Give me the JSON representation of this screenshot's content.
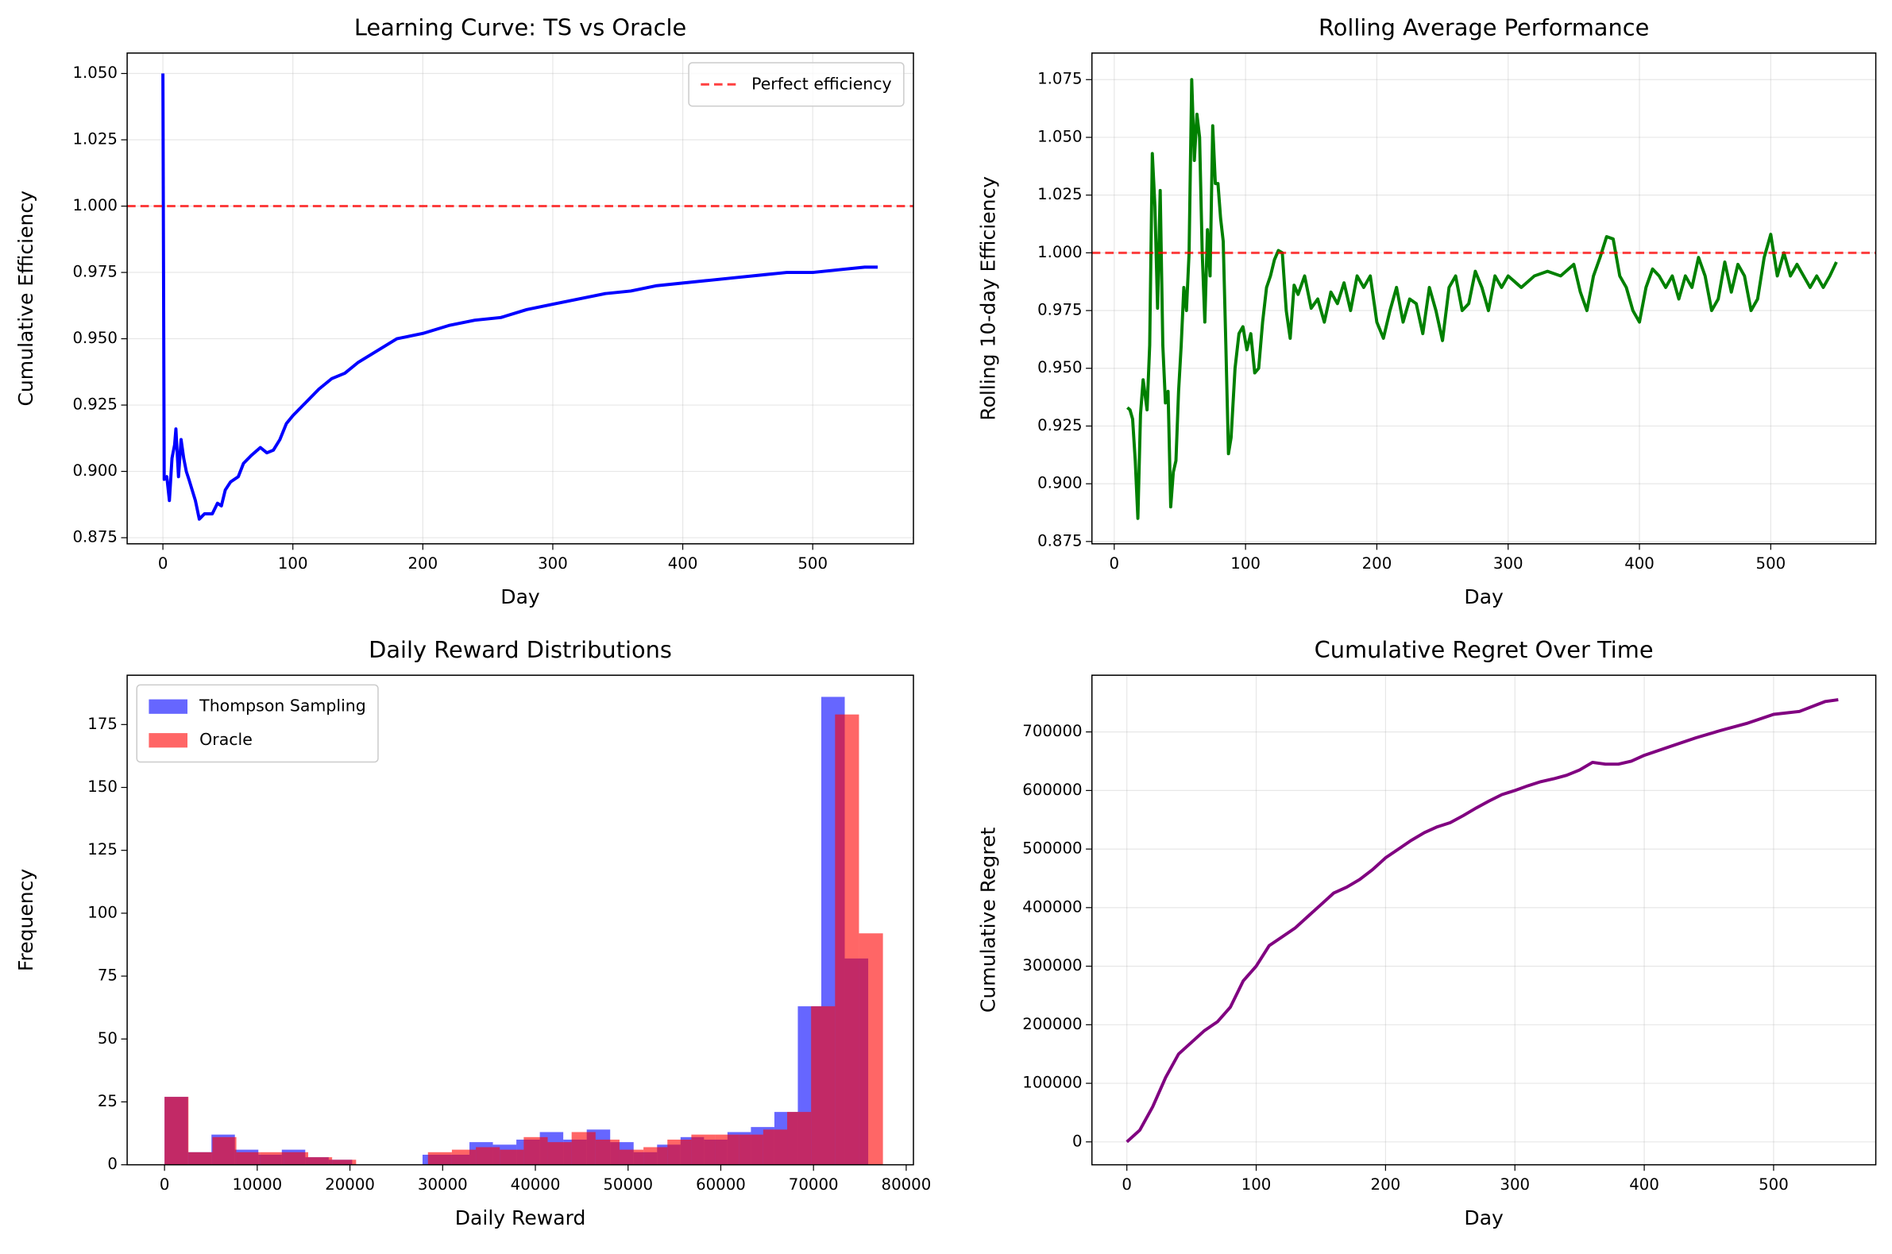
{
  "chart_data": [
    {
      "type": "line",
      "title": "Learning Curve: TS vs Oracle",
      "xlabel": "Day",
      "ylabel": "Cumulative Efficiency",
      "x": [
        0,
        1,
        3,
        5,
        7,
        9,
        10,
        12,
        14,
        16,
        18,
        20,
        25,
        28,
        32,
        38,
        42,
        45,
        48,
        52,
        58,
        62,
        68,
        75,
        80,
        85,
        90,
        95,
        100,
        110,
        120,
        130,
        140,
        150,
        160,
        170,
        180,
        190,
        200,
        220,
        240,
        260,
        280,
        300,
        320,
        340,
        360,
        380,
        400,
        420,
        440,
        460,
        480,
        500,
        520,
        540,
        550
      ],
      "series": [
        {
          "color": "#0000ff",
          "values": [
            1.05,
            0.897,
            0.898,
            0.889,
            0.905,
            0.91,
            0.916,
            0.898,
            0.912,
            0.905,
            0.9,
            0.897,
            0.889,
            0.882,
            0.884,
            0.884,
            0.888,
            0.887,
            0.893,
            0.896,
            0.898,
            0.903,
            0.906,
            0.909,
            0.907,
            0.908,
            0.912,
            0.918,
            0.921,
            0.926,
            0.931,
            0.935,
            0.937,
            0.941,
            0.944,
            0.947,
            0.95,
            0.951,
            0.952,
            0.955,
            0.957,
            0.958,
            0.961,
            0.963,
            0.965,
            0.967,
            0.968,
            0.97,
            0.971,
            0.972,
            0.973,
            0.974,
            0.975,
            0.975,
            0.976,
            0.977,
            0.977
          ]
        }
      ],
      "reference_lines": [
        {
          "y": 1,
          "label": "Perfect efficiency",
          "color": "#ff0000"
        }
      ],
      "legend": "upper right",
      "grid": true,
      "xlim": [
        -27.5,
        577.5
      ],
      "ylim": [
        0.8727,
        1.0577
      ],
      "xticks": [
        0,
        100,
        200,
        300,
        400,
        500
      ],
      "yticks": [
        0.875,
        {
          "value": 0.9,
          "label": "0.900"
        },
        0.925,
        {
          "value": 0.95,
          "label": "0.950"
        },
        0.975,
        {
          "value": 1,
          "label": "1.000"
        },
        1.025,
        {
          "value": 1.05,
          "label": "1.050"
        }
      ]
    },
    {
      "type": "line",
      "title": "Rolling Average Performance",
      "xlabel": "Day",
      "ylabel": "Rolling 10-day Efficiency",
      "x": [
        10,
        12,
        14,
        16,
        18,
        20,
        22,
        25,
        27,
        29,
        31,
        33,
        35,
        37,
        39,
        41,
        43,
        45,
        47,
        49,
        51,
        53,
        55,
        57,
        59,
        61,
        63,
        65,
        67,
        69,
        71,
        73,
        75,
        77,
        79,
        81,
        83,
        85,
        87,
        89,
        92,
        95,
        98,
        101,
        104,
        107,
        110,
        113,
        116,
        119,
        122,
        125,
        128,
        131,
        134,
        137,
        140,
        145,
        150,
        155,
        160,
        165,
        170,
        175,
        180,
        185,
        190,
        195,
        200,
        205,
        210,
        215,
        220,
        225,
        230,
        235,
        240,
        245,
        250,
        255,
        260,
        265,
        270,
        275,
        280,
        285,
        290,
        295,
        300,
        310,
        320,
        330,
        340,
        350,
        355,
        360,
        365,
        370,
        375,
        380,
        385,
        390,
        395,
        400,
        405,
        410,
        415,
        420,
        425,
        430,
        435,
        440,
        445,
        450,
        455,
        460,
        465,
        470,
        475,
        480,
        485,
        490,
        495,
        500,
        505,
        510,
        515,
        520,
        525,
        530,
        535,
        540,
        545,
        550
      ],
      "series": [
        {
          "color": "#008000",
          "values": [
            0.933,
            0.932,
            0.928,
            0.91,
            0.885,
            0.93,
            0.945,
            0.932,
            0.96,
            1.043,
            1.02,
            0.976,
            1.027,
            0.96,
            0.935,
            0.94,
            0.89,
            0.905,
            0.91,
            0.94,
            0.96,
            0.985,
            0.975,
            1.0,
            1.075,
            1.04,
            1.06,
            1.05,
            1.0,
            0.97,
            1.01,
            0.99,
            1.055,
            1.03,
            1.03,
            1.015,
            1.005,
            0.96,
            0.913,
            0.92,
            0.95,
            0.965,
            0.968,
            0.958,
            0.965,
            0.948,
            0.95,
            0.97,
            0.985,
            0.99,
            0.997,
            1.001,
            1.0,
            0.975,
            0.963,
            0.986,
            0.982,
            0.99,
            0.976,
            0.98,
            0.97,
            0.983,
            0.978,
            0.987,
            0.975,
            0.99,
            0.985,
            0.99,
            0.97,
            0.963,
            0.975,
            0.985,
            0.97,
            0.98,
            0.978,
            0.965,
            0.985,
            0.975,
            0.962,
            0.985,
            0.99,
            0.975,
            0.978,
            0.992,
            0.985,
            0.975,
            0.99,
            0.985,
            0.99,
            0.985,
            0.99,
            0.992,
            0.99,
            0.995,
            0.983,
            0.975,
            0.99,
            0.998,
            1.007,
            1.006,
            0.99,
            0.985,
            0.975,
            0.97,
            0.985,
            0.993,
            0.99,
            0.985,
            0.99,
            0.98,
            0.99,
            0.985,
            0.998,
            0.99,
            0.975,
            0.98,
            0.996,
            0.983,
            0.995,
            0.99,
            0.975,
            0.98,
            0.998,
            1.008,
            0.99,
            1.0,
            0.99,
            0.995,
            0.99,
            0.985,
            0.99,
            0.985,
            0.99,
            0.996
          ]
        }
      ],
      "reference_lines": [
        {
          "y": 1,
          "color": "#ff0000"
        }
      ],
      "grid": true,
      "xlim": [
        -17,
        580
      ],
      "ylim": [
        0.874,
        1.0865
      ],
      "xticks": [
        0,
        100,
        200,
        300,
        400,
        500
      ],
      "yticks": [
        0.875,
        {
          "value": 0.9,
          "label": "0.900"
        },
        0.925,
        {
          "value": 0.95,
          "label": "0.950"
        },
        0.975,
        {
          "value": 1,
          "label": "1.000"
        },
        1.025,
        {
          "value": 1.05,
          "label": "1.050"
        },
        1.075
      ]
    },
    {
      "type": "histogram",
      "title": "Daily Reward Distributions",
      "xlabel": "Daily Reward",
      "ylabel": "Frequency",
      "series": [
        {
          "name": "Thompson Sampling",
          "color": "#0000ff",
          "bins": [
            0,
            2530,
            5060,
            7590,
            10120,
            12650,
            15180,
            17710,
            20240,
            22770,
            25300,
            27830,
            30360,
            32890,
            35420,
            37950,
            40480,
            43010,
            45540,
            48070,
            50600,
            53130,
            55660,
            58190,
            60720,
            63250,
            65780,
            68310,
            70840,
            73370,
            75900
          ],
          "values": [
            27,
            5,
            12,
            6,
            4,
            6,
            3,
            2,
            0,
            0,
            0,
            4,
            4,
            9,
            8,
            10,
            13,
            10,
            14,
            9,
            5,
            8,
            11,
            10,
            13,
            15,
            21,
            63,
            186,
            82
          ]
        },
        {
          "name": "Oracle",
          "color": "#ff0000",
          "bins": [
            0,
            2583,
            5166,
            7749,
            10332,
            12915,
            15498,
            18081,
            20664,
            23247,
            25830,
            28413,
            30996,
            33579,
            36162,
            38745,
            41328,
            43911,
            46494,
            49077,
            51660,
            54243,
            56826,
            59409,
            61992,
            64575,
            67158,
            69741,
            72324,
            74907,
            77490
          ],
          "values": [
            27,
            5,
            11,
            5,
            5,
            5,
            3,
            2,
            0,
            0,
            0,
            5,
            6,
            7,
            6,
            11,
            9,
            13,
            10,
            6,
            7,
            10,
            12,
            12,
            12,
            14,
            21,
            63,
            179,
            92
          ]
        }
      ],
      "legend": "upper left",
      "grid": false,
      "xlim": [
        -4030,
        80780
      ],
      "ylim": [
        0,
        194.6
      ],
      "xticks": [
        0,
        10000,
        20000,
        30000,
        40000,
        50000,
        60000,
        70000,
        80000
      ],
      "yticks": [
        0,
        25,
        50,
        75,
        100,
        125,
        150,
        175
      ]
    },
    {
      "type": "line",
      "title": "Cumulative Regret Over Time",
      "xlabel": "Day",
      "ylabel": "Cumulative Regret",
      "x": [
        0,
        10,
        20,
        30,
        40,
        50,
        60,
        70,
        80,
        90,
        100,
        110,
        120,
        130,
        140,
        150,
        160,
        170,
        180,
        190,
        200,
        210,
        220,
        230,
        240,
        250,
        260,
        270,
        280,
        290,
        300,
        310,
        320,
        330,
        340,
        350,
        360,
        370,
        380,
        390,
        400,
        420,
        440,
        460,
        480,
        500,
        520,
        540,
        550
      ],
      "series": [
        {
          "color": "#800080",
          "values": [
            0,
            20000,
            60000,
            110000,
            150000,
            170000,
            190000,
            205000,
            230000,
            275000,
            300000,
            335000,
            350000,
            365000,
            385000,
            405000,
            425000,
            435000,
            448000,
            465000,
            485000,
            500000,
            515000,
            528000,
            538000,
            545000,
            557000,
            570000,
            582000,
            593000,
            600000,
            608000,
            615000,
            620000,
            626000,
            635000,
            648000,
            645000,
            645000,
            650000,
            660000,
            675000,
            690000,
            703000,
            715000,
            730000,
            735000,
            752000,
            755000
          ]
        }
      ],
      "grid": true,
      "xlim": [
        -27,
        579
      ],
      "ylim": [
        -39100,
        796800
      ],
      "xticks": [
        0,
        100,
        200,
        300,
        400,
        500
      ],
      "yticks": [
        0,
        100000,
        200000,
        300000,
        400000,
        500000,
        600000,
        700000
      ]
    }
  ]
}
